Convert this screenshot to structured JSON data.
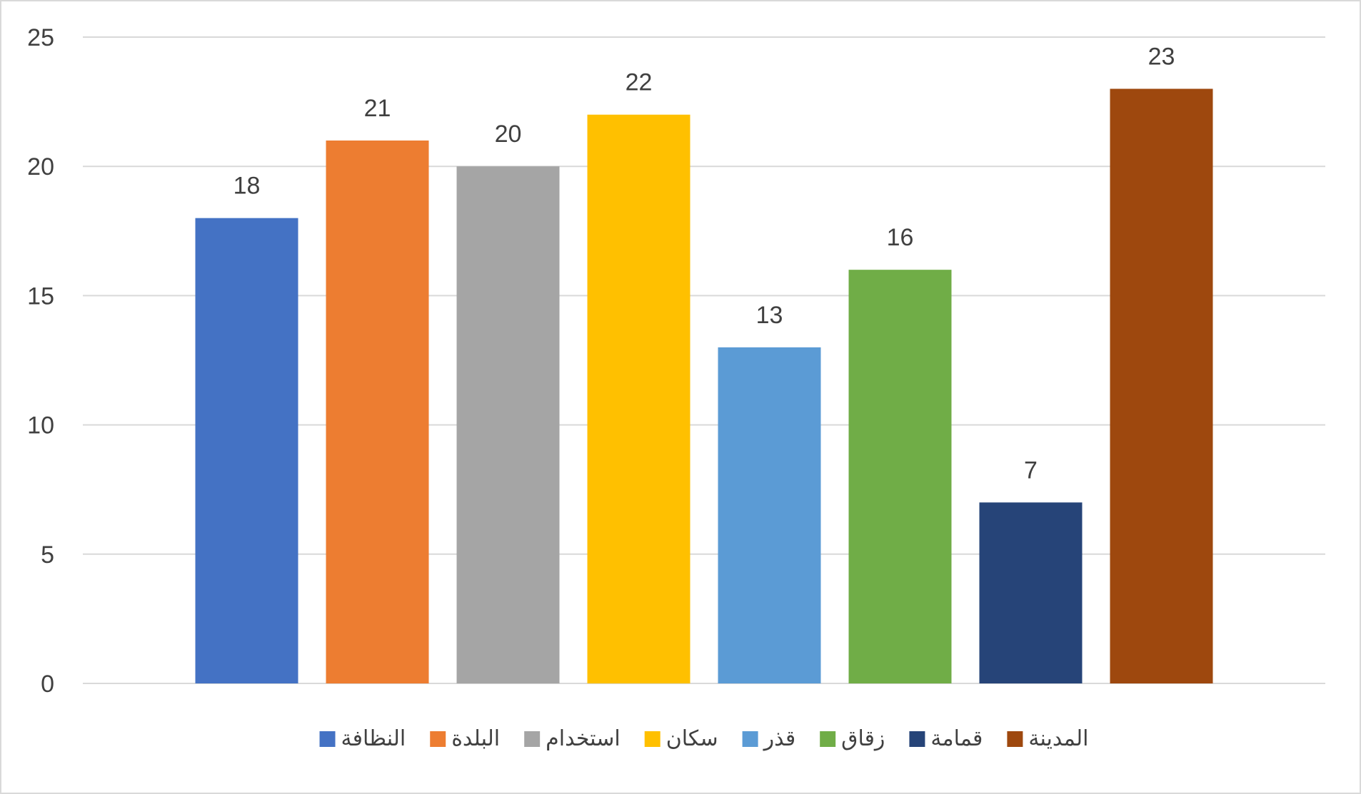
{
  "chart_data": {
    "type": "bar",
    "title": "",
    "xlabel": "",
    "ylabel": "",
    "ylim": [
      0,
      25
    ],
    "yticks": [
      0,
      5,
      10,
      15,
      20,
      25
    ],
    "grid": true,
    "legend_position": "bottom",
    "series": [
      {
        "name": "النظافة",
        "value": 18,
        "color": "#4472C4"
      },
      {
        "name": "البلدة",
        "value": 21,
        "color": "#ED7D31"
      },
      {
        "name": "استخدام",
        "value": 20,
        "color": "#A5A5A5"
      },
      {
        "name": "سكان",
        "value": 22,
        "color": "#FFC000"
      },
      {
        "name": "قذر",
        "value": 13,
        "color": "#5B9BD5"
      },
      {
        "name": "زقاق",
        "value": 16,
        "color": "#70AD47"
      },
      {
        "name": "قمامة",
        "value": 7,
        "color": "#264478"
      },
      {
        "name": "المدينة",
        "value": 23,
        "color": "#9E480E"
      }
    ]
  }
}
